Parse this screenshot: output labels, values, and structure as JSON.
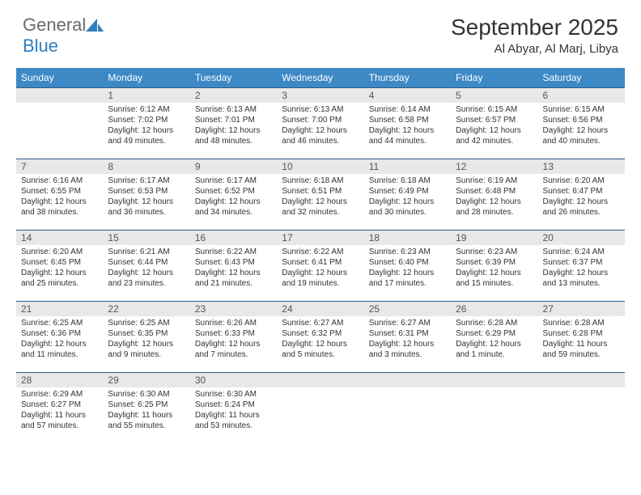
{
  "logo": {
    "text1": "General",
    "text2": "Blue"
  },
  "title": "September 2025",
  "location": "Al Abyar, Al Marj, Libya",
  "colors": {
    "header_bg": "#3d89c6",
    "header_text": "#ffffff",
    "daynum_bg": "#e8e8e8",
    "daynum_text": "#555555",
    "border": "#2a5c8a",
    "body_text": "#333333",
    "logo_gray": "#6b6b6b",
    "logo_blue": "#2f7fc0"
  },
  "day_headers": [
    "Sunday",
    "Monday",
    "Tuesday",
    "Wednesday",
    "Thursday",
    "Friday",
    "Saturday"
  ],
  "weeks": [
    [
      {
        "day": "",
        "lines": []
      },
      {
        "day": "1",
        "lines": [
          "Sunrise: 6:12 AM",
          "Sunset: 7:02 PM",
          "Daylight: 12 hours and 49 minutes."
        ]
      },
      {
        "day": "2",
        "lines": [
          "Sunrise: 6:13 AM",
          "Sunset: 7:01 PM",
          "Daylight: 12 hours and 48 minutes."
        ]
      },
      {
        "day": "3",
        "lines": [
          "Sunrise: 6:13 AM",
          "Sunset: 7:00 PM",
          "Daylight: 12 hours and 46 minutes."
        ]
      },
      {
        "day": "4",
        "lines": [
          "Sunrise: 6:14 AM",
          "Sunset: 6:58 PM",
          "Daylight: 12 hours and 44 minutes."
        ]
      },
      {
        "day": "5",
        "lines": [
          "Sunrise: 6:15 AM",
          "Sunset: 6:57 PM",
          "Daylight: 12 hours and 42 minutes."
        ]
      },
      {
        "day": "6",
        "lines": [
          "Sunrise: 6:15 AM",
          "Sunset: 6:56 PM",
          "Daylight: 12 hours and 40 minutes."
        ]
      }
    ],
    [
      {
        "day": "7",
        "lines": [
          "Sunrise: 6:16 AM",
          "Sunset: 6:55 PM",
          "Daylight: 12 hours and 38 minutes."
        ]
      },
      {
        "day": "8",
        "lines": [
          "Sunrise: 6:17 AM",
          "Sunset: 6:53 PM",
          "Daylight: 12 hours and 36 minutes."
        ]
      },
      {
        "day": "9",
        "lines": [
          "Sunrise: 6:17 AM",
          "Sunset: 6:52 PM",
          "Daylight: 12 hours and 34 minutes."
        ]
      },
      {
        "day": "10",
        "lines": [
          "Sunrise: 6:18 AM",
          "Sunset: 6:51 PM",
          "Daylight: 12 hours and 32 minutes."
        ]
      },
      {
        "day": "11",
        "lines": [
          "Sunrise: 6:18 AM",
          "Sunset: 6:49 PM",
          "Daylight: 12 hours and 30 minutes."
        ]
      },
      {
        "day": "12",
        "lines": [
          "Sunrise: 6:19 AM",
          "Sunset: 6:48 PM",
          "Daylight: 12 hours and 28 minutes."
        ]
      },
      {
        "day": "13",
        "lines": [
          "Sunrise: 6:20 AM",
          "Sunset: 6:47 PM",
          "Daylight: 12 hours and 26 minutes."
        ]
      }
    ],
    [
      {
        "day": "14",
        "lines": [
          "Sunrise: 6:20 AM",
          "Sunset: 6:45 PM",
          "Daylight: 12 hours and 25 minutes."
        ]
      },
      {
        "day": "15",
        "lines": [
          "Sunrise: 6:21 AM",
          "Sunset: 6:44 PM",
          "Daylight: 12 hours and 23 minutes."
        ]
      },
      {
        "day": "16",
        "lines": [
          "Sunrise: 6:22 AM",
          "Sunset: 6:43 PM",
          "Daylight: 12 hours and 21 minutes."
        ]
      },
      {
        "day": "17",
        "lines": [
          "Sunrise: 6:22 AM",
          "Sunset: 6:41 PM",
          "Daylight: 12 hours and 19 minutes."
        ]
      },
      {
        "day": "18",
        "lines": [
          "Sunrise: 6:23 AM",
          "Sunset: 6:40 PM",
          "Daylight: 12 hours and 17 minutes."
        ]
      },
      {
        "day": "19",
        "lines": [
          "Sunrise: 6:23 AM",
          "Sunset: 6:39 PM",
          "Daylight: 12 hours and 15 minutes."
        ]
      },
      {
        "day": "20",
        "lines": [
          "Sunrise: 6:24 AM",
          "Sunset: 6:37 PM",
          "Daylight: 12 hours and 13 minutes."
        ]
      }
    ],
    [
      {
        "day": "21",
        "lines": [
          "Sunrise: 6:25 AM",
          "Sunset: 6:36 PM",
          "Daylight: 12 hours and 11 minutes."
        ]
      },
      {
        "day": "22",
        "lines": [
          "Sunrise: 6:25 AM",
          "Sunset: 6:35 PM",
          "Daylight: 12 hours and 9 minutes."
        ]
      },
      {
        "day": "23",
        "lines": [
          "Sunrise: 6:26 AM",
          "Sunset: 6:33 PM",
          "Daylight: 12 hours and 7 minutes."
        ]
      },
      {
        "day": "24",
        "lines": [
          "Sunrise: 6:27 AM",
          "Sunset: 6:32 PM",
          "Daylight: 12 hours and 5 minutes."
        ]
      },
      {
        "day": "25",
        "lines": [
          "Sunrise: 6:27 AM",
          "Sunset: 6:31 PM",
          "Daylight: 12 hours and 3 minutes."
        ]
      },
      {
        "day": "26",
        "lines": [
          "Sunrise: 6:28 AM",
          "Sunset: 6:29 PM",
          "Daylight: 12 hours and 1 minute."
        ]
      },
      {
        "day": "27",
        "lines": [
          "Sunrise: 6:28 AM",
          "Sunset: 6:28 PM",
          "Daylight: 11 hours and 59 minutes."
        ]
      }
    ],
    [
      {
        "day": "28",
        "lines": [
          "Sunrise: 6:29 AM",
          "Sunset: 6:27 PM",
          "Daylight: 11 hours and 57 minutes."
        ]
      },
      {
        "day": "29",
        "lines": [
          "Sunrise: 6:30 AM",
          "Sunset: 6:25 PM",
          "Daylight: 11 hours and 55 minutes."
        ]
      },
      {
        "day": "30",
        "lines": [
          "Sunrise: 6:30 AM",
          "Sunset: 6:24 PM",
          "Daylight: 11 hours and 53 minutes."
        ]
      },
      {
        "day": "",
        "lines": []
      },
      {
        "day": "",
        "lines": []
      },
      {
        "day": "",
        "lines": []
      },
      {
        "day": "",
        "lines": []
      }
    ]
  ]
}
